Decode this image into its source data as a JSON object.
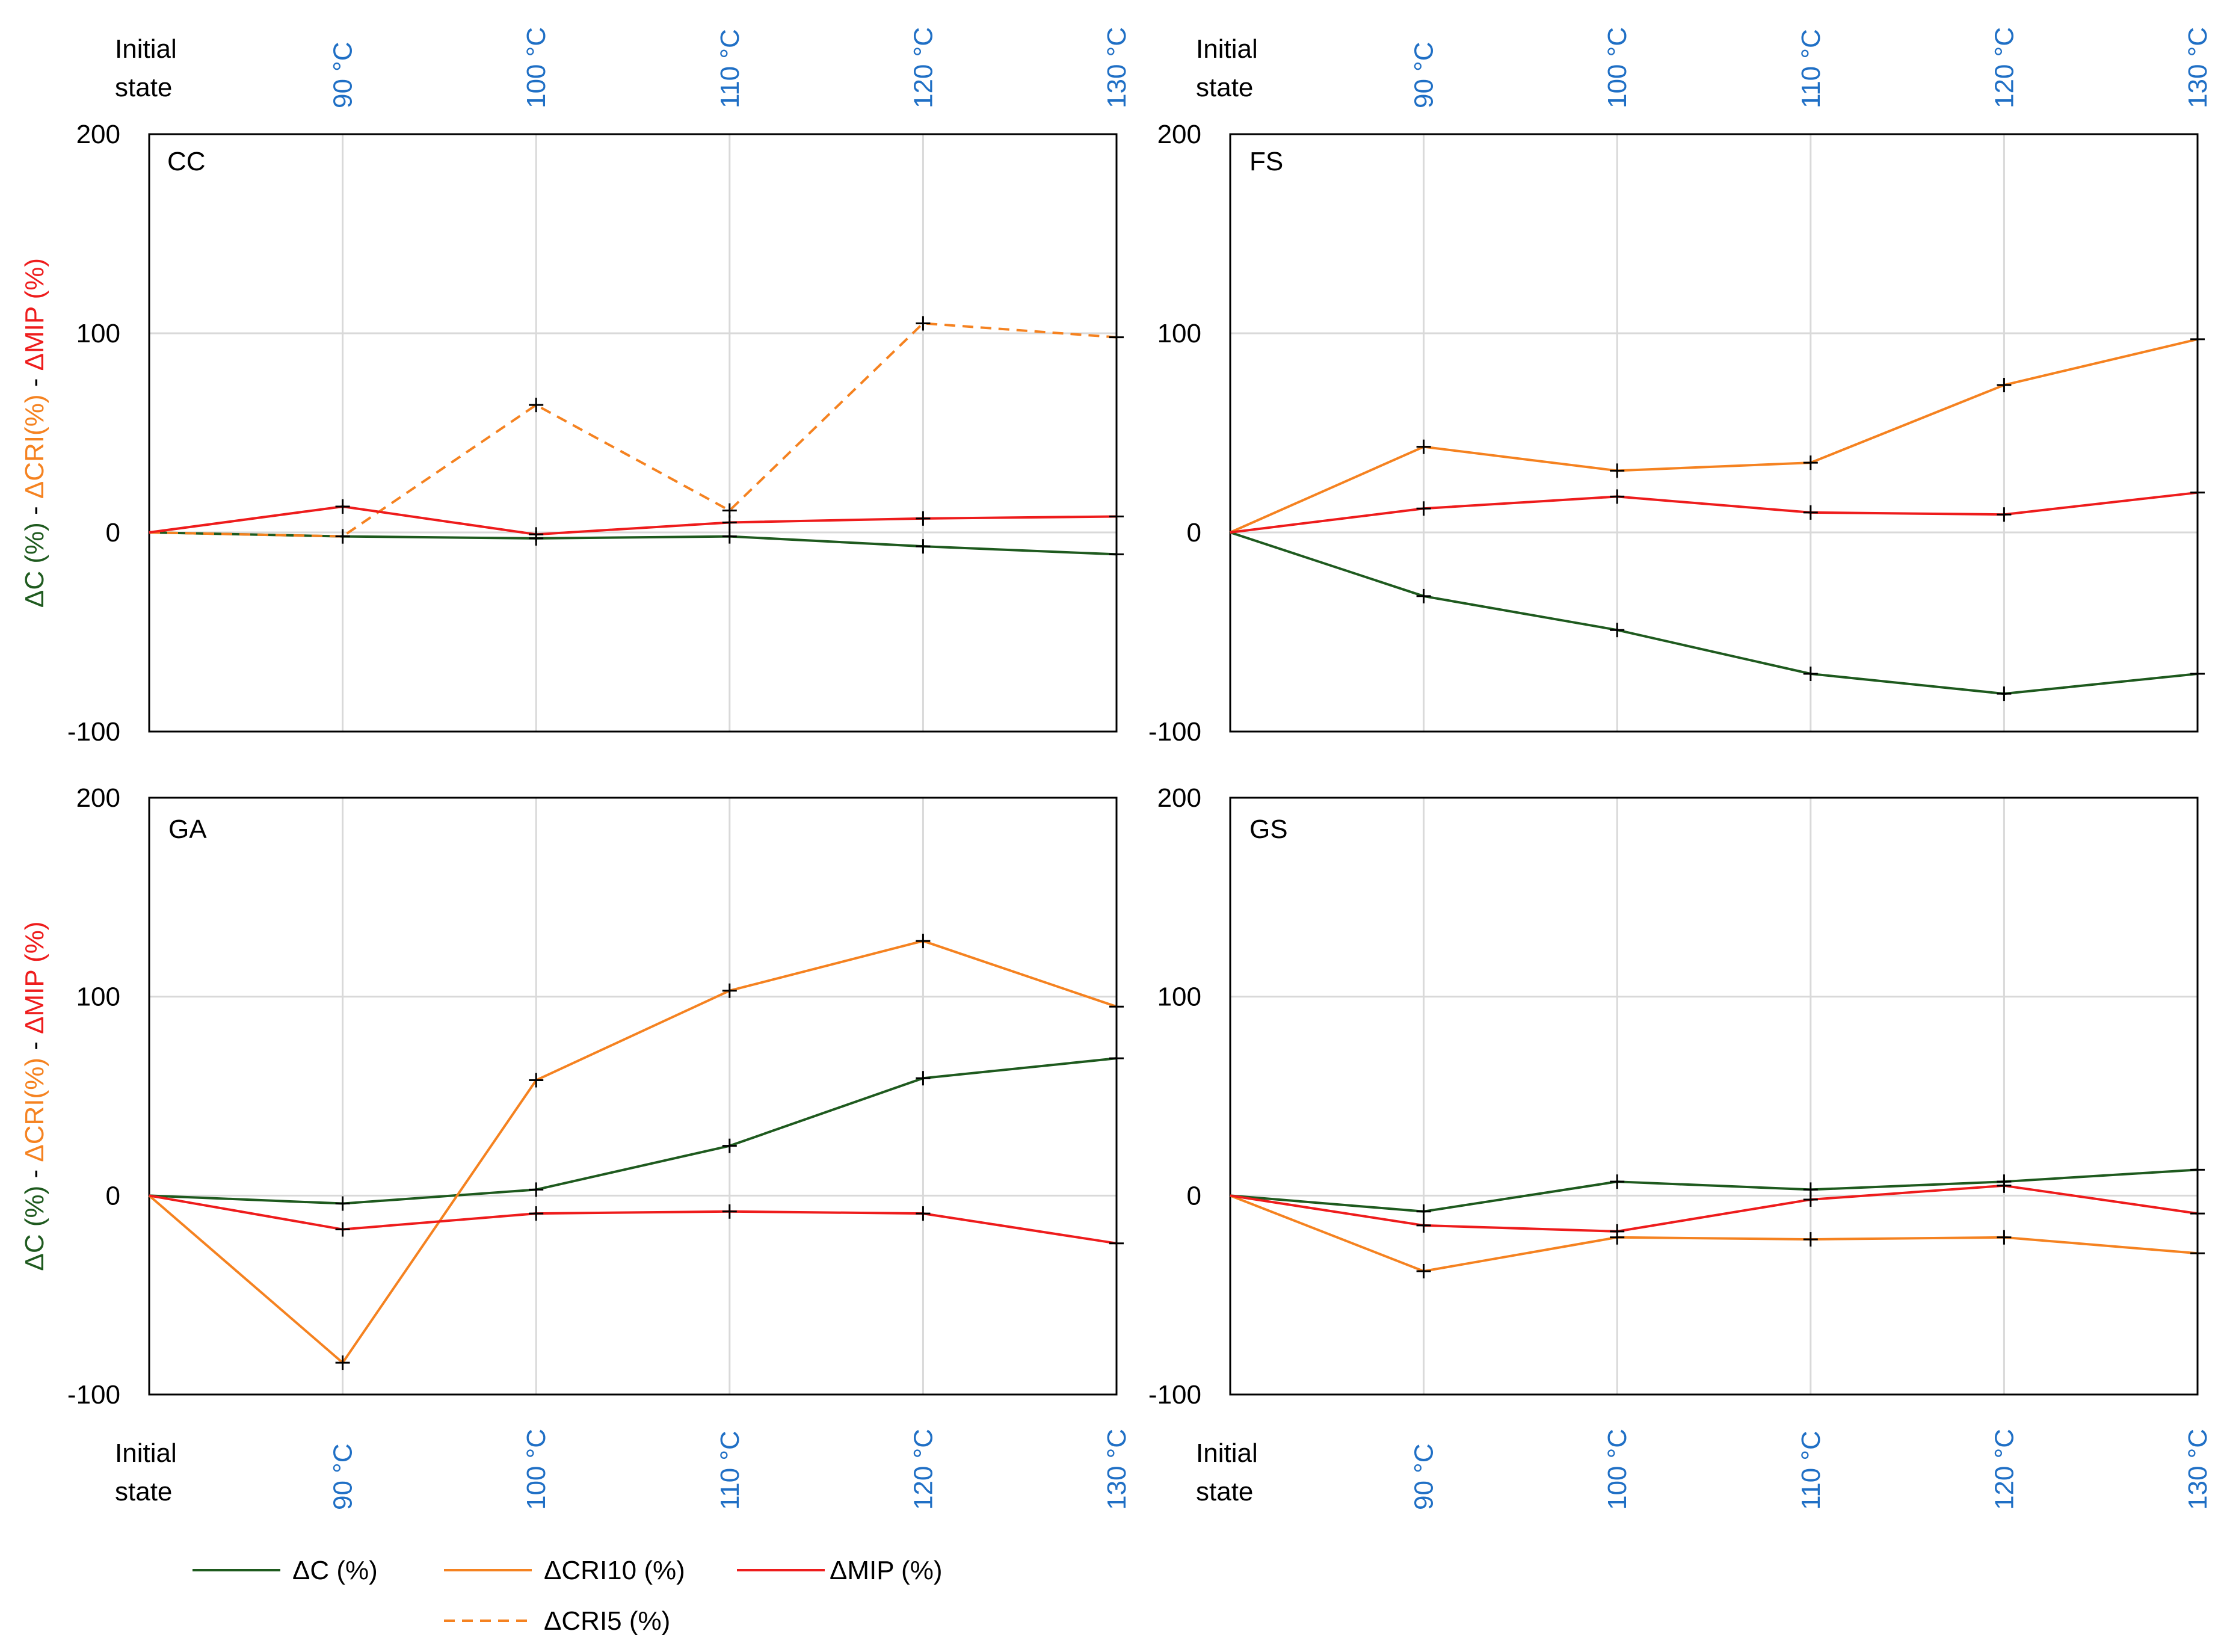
{
  "colors": {
    "dc": "#1e5a1e",
    "dcri": "#f58220",
    "dmip": "#ee1c1c",
    "temp_tick": "#1f6fc5",
    "grid": "#d9d9d9",
    "frame": "#000000",
    "marker": "#000000"
  },
  "x_labels": {
    "initial": [
      "Initial",
      "state"
    ],
    "temps": [
      "90 °C",
      "100 °C",
      "110 °C",
      "120 °C",
      "130 °C"
    ]
  },
  "y_axis_label": {
    "part1": "ΔC (%)",
    "sep1": " - ",
    "part2": "ΔCRI(%)",
    "sep2": " - ",
    "part3": "ΔMIP (%)"
  },
  "legend": [
    {
      "key": "dc",
      "label": "ΔC (%)",
      "dash": false
    },
    {
      "key": "dcri10",
      "label": "ΔCRI10 (%)",
      "dash": false
    },
    {
      "key": "dmip",
      "label": "ΔMIP (%)",
      "dash": false
    },
    {
      "key": "dcri5",
      "label": "ΔCRI5 (%)",
      "dash": true
    }
  ],
  "chart_data": [
    {
      "panel": "CC",
      "type": "line",
      "categories": [
        "Initial state",
        "90 °C",
        "100 °C",
        "110 °C",
        "120 °C",
        "130 °C"
      ],
      "ylim": [
        -100,
        200
      ],
      "yticks": [
        -100,
        0,
        100,
        200
      ],
      "series": [
        {
          "key": "dc",
          "name": "ΔC (%)",
          "values": [
            0,
            -2,
            -3,
            -2,
            -7,
            -11
          ]
        },
        {
          "key": "dcri5",
          "name": "ΔCRI5 (%)",
          "values": [
            0,
            -2,
            64,
            11,
            105,
            98
          ]
        },
        {
          "key": "dmip",
          "name": "ΔMIP (%)",
          "values": [
            0,
            13,
            -1,
            5,
            7,
            8
          ]
        }
      ]
    },
    {
      "panel": "FS",
      "type": "line",
      "categories": [
        "Initial state",
        "90 °C",
        "100 °C",
        "110 °C",
        "120 °C",
        "130 °C"
      ],
      "ylim": [
        -100,
        200
      ],
      "yticks": [
        -100,
        0,
        100,
        200
      ],
      "series": [
        {
          "key": "dc",
          "name": "ΔC (%)",
          "values": [
            0,
            -32,
            -49,
            -71,
            -81,
            -71
          ]
        },
        {
          "key": "dcri10",
          "name": "ΔCRI10 (%)",
          "values": [
            0,
            43,
            31,
            35,
            74,
            97
          ]
        },
        {
          "key": "dmip",
          "name": "ΔMIP (%)",
          "values": [
            0,
            12,
            18,
            10,
            9,
            20
          ]
        }
      ]
    },
    {
      "panel": "GA",
      "type": "line",
      "categories": [
        "Initial state",
        "90 °C",
        "100 °C",
        "110 °C",
        "120 °C",
        "130 °C"
      ],
      "ylim": [
        -100,
        200
      ],
      "yticks": [
        -100,
        0,
        100,
        200
      ],
      "series": [
        {
          "key": "dc",
          "name": "ΔC (%)",
          "values": [
            0,
            -4,
            3,
            25,
            59,
            69
          ]
        },
        {
          "key": "dcri10",
          "name": "ΔCRI10 (%)",
          "values": [
            0,
            -84,
            58,
            103,
            128,
            95
          ]
        },
        {
          "key": "dmip",
          "name": "ΔMIP (%)",
          "values": [
            0,
            -17,
            -9,
            -8,
            -9,
            -24
          ]
        }
      ]
    },
    {
      "panel": "GS",
      "type": "line",
      "categories": [
        "Initial state",
        "90 °C",
        "100 °C",
        "110 °C",
        "120 °C",
        "130 °C"
      ],
      "ylim": [
        -100,
        200
      ],
      "yticks": [
        -100,
        0,
        100,
        200
      ],
      "series": [
        {
          "key": "dc",
          "name": "ΔC (%)",
          "values": [
            0,
            -8,
            7,
            3,
            7,
            13
          ]
        },
        {
          "key": "dcri10",
          "name": "ΔCRI10 (%)",
          "values": [
            0,
            -38,
            -21,
            -22,
            -21,
            -29
          ]
        },
        {
          "key": "dmip",
          "name": "ΔMIP (%)",
          "values": [
            0,
            -15,
            -18,
            -2,
            5,
            -9
          ]
        }
      ]
    }
  ]
}
